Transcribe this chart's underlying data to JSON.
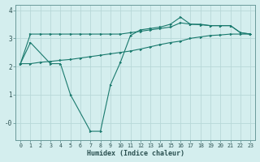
{
  "line1_x": [
    0,
    1,
    2,
    3,
    4,
    5,
    6,
    7,
    8,
    9,
    10,
    11,
    12,
    13,
    14,
    15,
    16,
    17,
    18,
    19,
    20,
    21,
    22,
    23
  ],
  "line1_y": [
    2.1,
    3.15,
    3.15,
    3.15,
    3.15,
    3.15,
    3.15,
    3.15,
    3.15,
    3.15,
    3.15,
    3.2,
    3.25,
    3.3,
    3.35,
    3.4,
    3.55,
    3.5,
    3.48,
    3.45,
    3.45,
    3.45,
    3.2,
    3.15
  ],
  "line2_x": [
    0,
    1,
    3,
    4,
    5,
    7,
    8,
    9,
    10,
    11,
    12,
    13,
    14,
    15,
    16,
    17,
    18,
    19,
    20,
    21,
    22,
    23
  ],
  "line2_y": [
    2.1,
    2.85,
    2.1,
    2.1,
    1.0,
    -0.3,
    -0.3,
    1.35,
    2.15,
    3.1,
    3.3,
    3.35,
    3.4,
    3.5,
    3.75,
    3.5,
    3.5,
    3.45,
    3.45,
    3.45,
    3.2,
    3.15
  ],
  "line3_x": [
    0,
    1,
    2,
    3,
    4,
    5,
    6,
    7,
    8,
    9,
    10,
    11,
    12,
    13,
    14,
    15,
    16,
    17,
    18,
    19,
    20,
    21,
    22,
    23
  ],
  "line3_y": [
    2.1,
    2.1,
    2.15,
    2.18,
    2.22,
    2.25,
    2.3,
    2.35,
    2.4,
    2.45,
    2.5,
    2.55,
    2.62,
    2.7,
    2.78,
    2.85,
    2.9,
    3.0,
    3.05,
    3.1,
    3.12,
    3.15,
    3.15,
    3.15
  ],
  "color": "#1a7a6e",
  "bg_color": "#d4eeee",
  "grid_color": "#b8d8d8",
  "xlabel": "Humidex (Indice chaleur)",
  "ylim": [
    -0.6,
    4.2
  ],
  "xlim": [
    -0.5,
    23.5
  ],
  "yticks": [
    0,
    1,
    2,
    3,
    4
  ],
  "ytick_labels": [
    "-0",
    "1",
    "2",
    "3",
    "4"
  ]
}
